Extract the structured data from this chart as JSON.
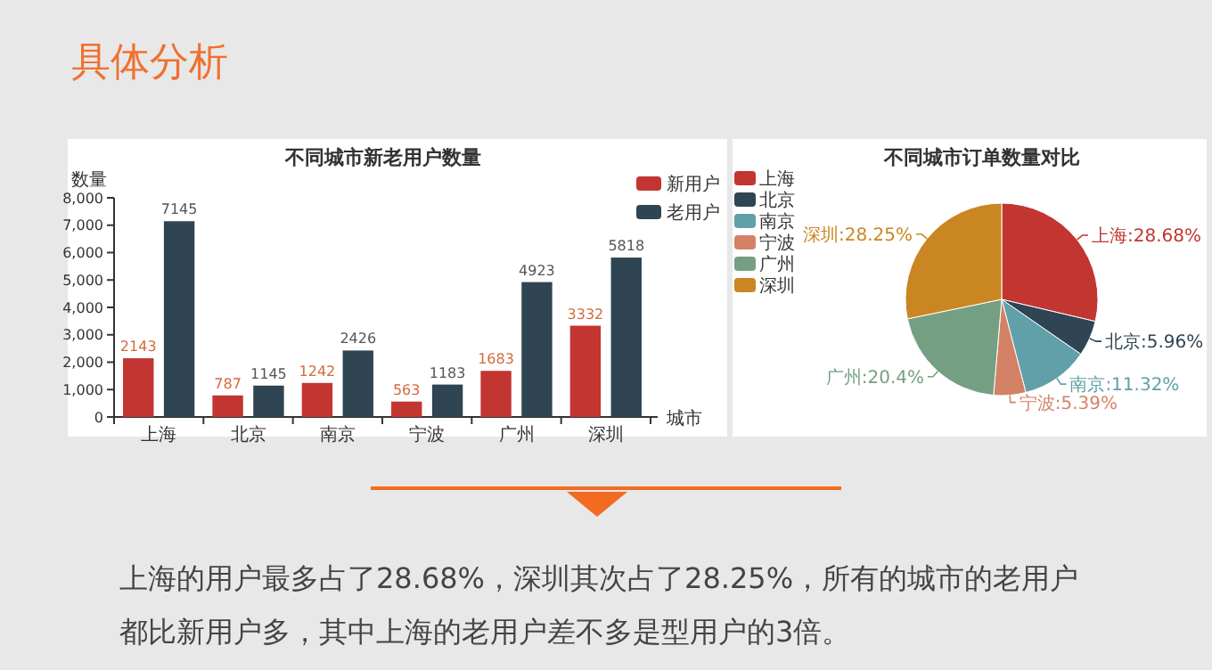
{
  "chart_data": [
    {
      "type": "bar",
      "title": "不同城市新老用户数量",
      "xlabel": "城市",
      "ylabel": "数量",
      "categories": [
        "上海",
        "北京",
        "南京",
        "宁波",
        "广州",
        "深圳"
      ],
      "series": [
        {
          "name": "新用户",
          "color": "#c23531",
          "values": [
            2143,
            787,
            1242,
            563,
            1683,
            3332
          ]
        },
        {
          "name": "老用户",
          "color": "#2f4554",
          "values": [
            7145,
            1145,
            2426,
            1183,
            4923,
            5818
          ]
        }
      ],
      "ylim": [
        0,
        8000
      ],
      "yticks": [
        0,
        {
          "value": 1000,
          "label": "1,000"
        },
        {
          "value": 2000,
          "label": "2,000"
        },
        {
          "value": 3000,
          "label": "3,000"
        },
        {
          "value": 4000,
          "label": "4,000"
        },
        {
          "value": 5000,
          "label": "5,000"
        },
        {
          "value": 6000,
          "label": "6,000"
        },
        {
          "value": 7000,
          "label": "7,000"
        },
        {
          "value": 8000,
          "label": "8,000"
        }
      ],
      "data_labels": true,
      "legend": "top right"
    },
    {
      "type": "pie",
      "title": "不同城市订单数量对比",
      "categories": [
        "上海",
        "北京",
        "南京",
        "宁波",
        "广州",
        "深圳"
      ],
      "values": [
        28.68,
        5.96,
        11.32,
        5.39,
        20.4,
        28.25
      ],
      "colors": [
        "#c23531",
        "#2f4554",
        "#61a0a8",
        "#d48265",
        "#749f83",
        "#ca8622"
      ],
      "value_labels": [
        "上海:28.68%",
        "北京:5.96%",
        "南京:11.32%",
        "宁波:5.39%",
        "广州:20.4%",
        "深圳:28.25%"
      ],
      "legend": "top left"
    },
    {
      "type": "other",
      "title": "具体分析",
      "annotations": [
        "上海的用户最多占了28.68%，深圳其次占了28.25%，所有的城市的老用户都比新用户多，其中上海的老用户差不多是型用户的3倍。"
      ]
    }
  ]
}
